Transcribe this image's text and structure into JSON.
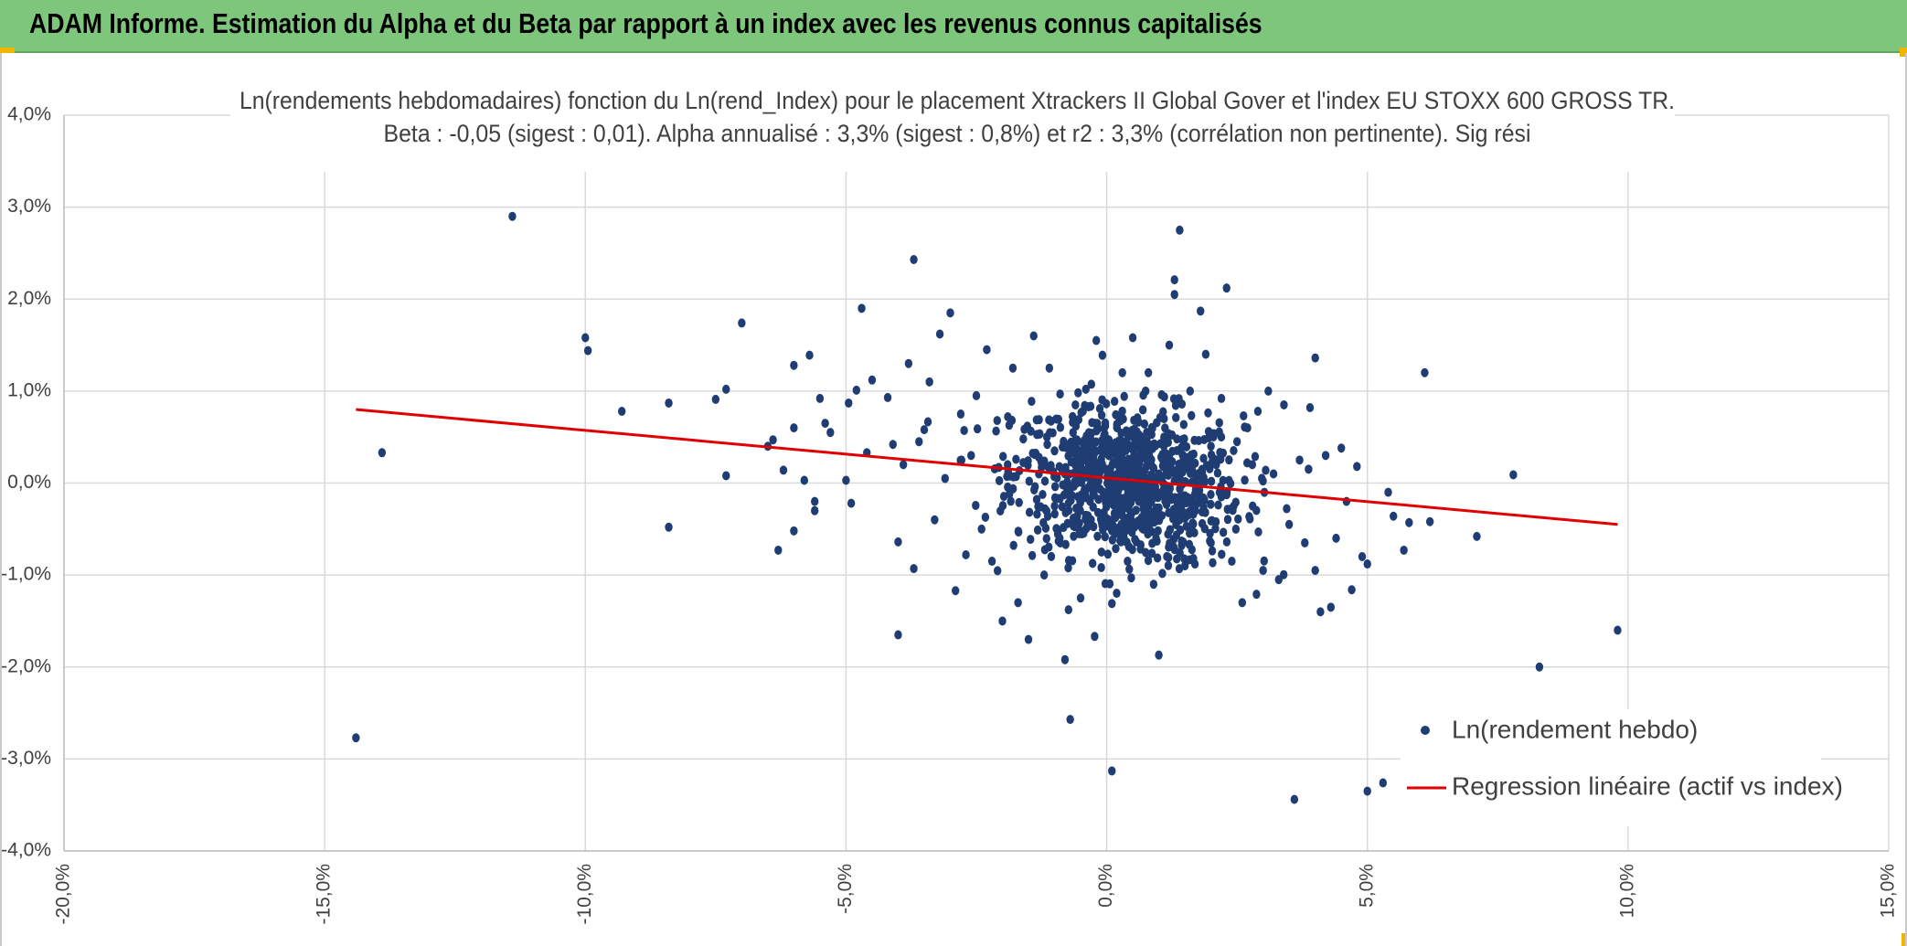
{
  "header": {
    "title": "ADAM Informe. Estimation du Alpha et du Beta par rapport à un index avec les revenus connus capitalisés"
  },
  "colors": {
    "header_bg": "#7dc67b",
    "points": "#1f3d73",
    "regression": "#e00000",
    "accent_corner": "#f1b400"
  },
  "chart_data": {
    "type": "scatter",
    "title_line1": "Ln(rendements hebdomadaires) fonction du Ln(rend_Index) pour le placement Xtrackers II Global Gover et l'index EU STOXX 600 GROSS TR.",
    "title_line2": "Beta : -0,05 (sigest : 0,01). Alpha annualisé : 3,3% (sigest : 0,8%) et r2 : 3,3% (corrélation non pertinente). Sig rési",
    "xlabel": "",
    "ylabel": "",
    "xlim": [
      -0.2,
      0.15
    ],
    "ylim": [
      -0.04,
      0.04
    ],
    "x_ticks": [
      -0.2,
      -0.15,
      -0.1,
      -0.05,
      0.0,
      0.05,
      0.1,
      0.15
    ],
    "x_tick_labels": [
      "-20,0%",
      "-15,0%",
      "-10,0%",
      "-5,0%",
      "0,0%",
      "5,0%",
      "10,0%",
      "15,0%"
    ],
    "y_ticks": [
      0.04,
      0.03,
      0.02,
      0.01,
      0.0,
      -0.01,
      -0.02,
      -0.03,
      -0.04
    ],
    "y_tick_labels": [
      "4,0%",
      "3,0%",
      "2,0%",
      "1,0%",
      "0,0%",
      "-1,0%",
      "-2,0%",
      "-3,0%",
      "-4,0%"
    ],
    "grid": true,
    "legend_position": "bottom-right",
    "series": [
      {
        "name": "Ln(rendement hebdo)",
        "kind": "scatter",
        "points": [
          [
            -0.144,
            -0.0277
          ],
          [
            -0.139,
            0.0033
          ],
          [
            -0.114,
            0.029
          ],
          [
            -0.1,
            0.0158
          ],
          [
            -0.0995,
            0.0144
          ],
          [
            -0.093,
            0.0078
          ],
          [
            -0.084,
            0.0087
          ],
          [
            -0.084,
            -0.0048
          ],
          [
            -0.075,
            0.0091
          ],
          [
            -0.073,
            0.0102
          ],
          [
            -0.073,
            0.0008
          ],
          [
            -0.07,
            0.0174
          ],
          [
            -0.065,
            0.004
          ],
          [
            -0.064,
            0.0047
          ],
          [
            -0.063,
            -0.0073
          ],
          [
            -0.062,
            0.0014
          ],
          [
            -0.06,
            0.0128
          ],
          [
            -0.06,
            -0.0052
          ],
          [
            -0.06,
            0.006
          ],
          [
            -0.058,
            0.0003
          ],
          [
            -0.057,
            0.0139
          ],
          [
            -0.056,
            -0.002
          ],
          [
            -0.056,
            -0.003
          ],
          [
            -0.055,
            0.0092
          ],
          [
            -0.054,
            0.0065
          ],
          [
            -0.053,
            0.0055
          ],
          [
            -0.05,
            0.0003
          ],
          [
            -0.0495,
            0.0087
          ],
          [
            -0.049,
            -0.0022
          ],
          [
            -0.048,
            0.0101
          ],
          [
            -0.047,
            0.019
          ],
          [
            -0.046,
            0.0033
          ],
          [
            -0.045,
            0.0112
          ],
          [
            -0.042,
            0.0093
          ],
          [
            -0.041,
            0.0042
          ],
          [
            -0.04,
            -0.0064
          ],
          [
            -0.04,
            -0.0165
          ],
          [
            -0.039,
            0.002
          ],
          [
            -0.038,
            0.013
          ],
          [
            -0.037,
            0.0243
          ],
          [
            -0.037,
            -0.0093
          ],
          [
            -0.036,
            0.0045
          ],
          [
            -0.035,
            0.0058
          ],
          [
            -0.034,
            0.011
          ],
          [
            -0.033,
            -0.004
          ],
          [
            -0.032,
            0.0162
          ],
          [
            -0.031,
            0.0005
          ],
          [
            -0.03,
            0.0185
          ],
          [
            -0.029,
            -0.0117
          ],
          [
            -0.028,
            0.0075
          ],
          [
            -0.027,
            -0.0078
          ],
          [
            -0.026,
            0.003
          ],
          [
            -0.025,
            0.0095
          ],
          [
            -0.024,
            -0.005
          ],
          [
            -0.023,
            0.0145
          ],
          [
            -0.022,
            -0.0085
          ],
          [
            -0.021,
            0.0068
          ],
          [
            -0.02,
            -0.015
          ],
          [
            -0.019,
            0.002
          ],
          [
            -0.018,
            0.0125
          ],
          [
            -0.017,
            -0.013
          ],
          [
            -0.016,
            0.0048
          ],
          [
            -0.015,
            -0.017
          ],
          [
            -0.014,
            0.016
          ],
          [
            -0.013,
            0.001
          ],
          [
            -0.012,
            -0.01
          ],
          [
            -0.011,
            0.0125
          ],
          [
            -0.01,
            0.0035
          ],
          [
            -0.009,
            -0.006
          ],
          [
            -0.008,
            -0.0192
          ],
          [
            -0.007,
            -0.0257
          ],
          [
            -0.006,
            0.0085
          ],
          [
            -0.005,
            -0.0125
          ],
          [
            -0.004,
            0.0102
          ],
          [
            -0.003,
            -0.004
          ],
          [
            -0.002,
            0.0155
          ],
          [
            -0.001,
            -0.0075
          ],
          [
            0.0,
            0.004
          ],
          [
            0.001,
            -0.0131
          ],
          [
            0.001,
            -0.0313
          ],
          [
            0.002,
            0.006
          ],
          [
            0.003,
            0.012
          ],
          [
            0.004,
            -0.0085
          ],
          [
            0.005,
            0.0158
          ],
          [
            0.006,
            -0.0045
          ],
          [
            0.007,
            0.003
          ],
          [
            0.008,
            0.012
          ],
          [
            0.009,
            -0.011
          ],
          [
            0.01,
            -0.0187
          ],
          [
            0.011,
            0.007
          ],
          [
            0.012,
            0.015
          ],
          [
            0.013,
            0.0205
          ],
          [
            0.013,
            0.0221
          ],
          [
            0.014,
            0.0275
          ],
          [
            0.015,
            -0.009
          ],
          [
            0.016,
            0.01
          ],
          [
            0.017,
            -0.003
          ],
          [
            0.018,
            0.0187
          ],
          [
            0.019,
            0.014
          ],
          [
            0.02,
            -0.0065
          ],
          [
            0.021,
            0.002
          ],
          [
            0.022,
            0.0092
          ],
          [
            0.023,
            0.0212
          ],
          [
            0.024,
            -0.0085
          ],
          [
            0.025,
            0.0045
          ],
          [
            0.026,
            -0.013
          ],
          [
            0.027,
            0.006
          ],
          [
            0.028,
            -0.0025
          ],
          [
            0.029,
            0.0078
          ],
          [
            0.03,
            -0.0095
          ],
          [
            0.031,
            0.01
          ],
          [
            0.032,
            0.001
          ],
          [
            0.033,
            -0.0105
          ],
          [
            0.034,
            0.0085
          ],
          [
            0.035,
            -0.0045
          ],
          [
            0.036,
            -0.0344
          ],
          [
            0.037,
            0.0025
          ],
          [
            0.038,
            -0.0065
          ],
          [
            0.039,
            0.0082
          ],
          [
            0.04,
            -0.0095
          ],
          [
            0.04,
            0.0136
          ],
          [
            0.041,
            -0.014
          ],
          [
            0.042,
            0.003
          ],
          [
            0.043,
            -0.0135
          ],
          [
            0.044,
            -0.006
          ],
          [
            0.045,
            0.0038
          ],
          [
            0.046,
            -0.002
          ],
          [
            0.047,
            -0.0116
          ],
          [
            0.048,
            0.0018
          ],
          [
            0.049,
            -0.008
          ],
          [
            0.05,
            -0.0335
          ],
          [
            0.05,
            -0.0088
          ],
          [
            0.053,
            -0.0326
          ],
          [
            0.054,
            -0.001
          ],
          [
            0.055,
            -0.0036
          ],
          [
            0.057,
            -0.0073
          ],
          [
            0.058,
            -0.0043
          ],
          [
            0.061,
            0.012
          ],
          [
            0.062,
            -0.0042
          ],
          [
            0.071,
            -0.0058
          ],
          [
            0.078,
            0.0009
          ],
          [
            0.083,
            -0.02
          ],
          [
            0.098,
            -0.016
          ],
          [
            -0.003,
            0.0005
          ],
          [
            0.004,
            0.0015
          ],
          [
            0.002,
            -0.0015
          ],
          [
            0.006,
            0.0025
          ],
          [
            -0.005,
            0.002
          ],
          [
            0.008,
            -0.001
          ],
          [
            0.01,
            0.0005
          ],
          [
            -0.008,
            0.001
          ],
          [
            0.012,
            0.003
          ],
          [
            0.015,
            -0.002
          ],
          [
            -0.01,
            -0.0025
          ],
          [
            0.018,
            0.0008
          ],
          [
            0.003,
            0.0045
          ],
          [
            0.007,
            -0.005
          ],
          [
            -0.004,
            -0.0035
          ],
          [
            0.011,
            0.005
          ],
          [
            0.014,
            -0.004
          ],
          [
            -0.013,
            0.0028
          ],
          [
            0.02,
            0.004
          ],
          [
            0.022,
            -0.0015
          ]
        ]
      },
      {
        "name": "Regression linéaire (actif vs index)",
        "kind": "line",
        "points": [
          [
            -0.144,
            0.008
          ],
          [
            0.098,
            -0.0045
          ]
        ]
      }
    ],
    "legend": [
      {
        "label": "Ln(rendement hebdo)",
        "marker": "dot"
      },
      {
        "label": "Regression linéaire (actif vs index)",
        "marker": "line"
      }
    ]
  }
}
